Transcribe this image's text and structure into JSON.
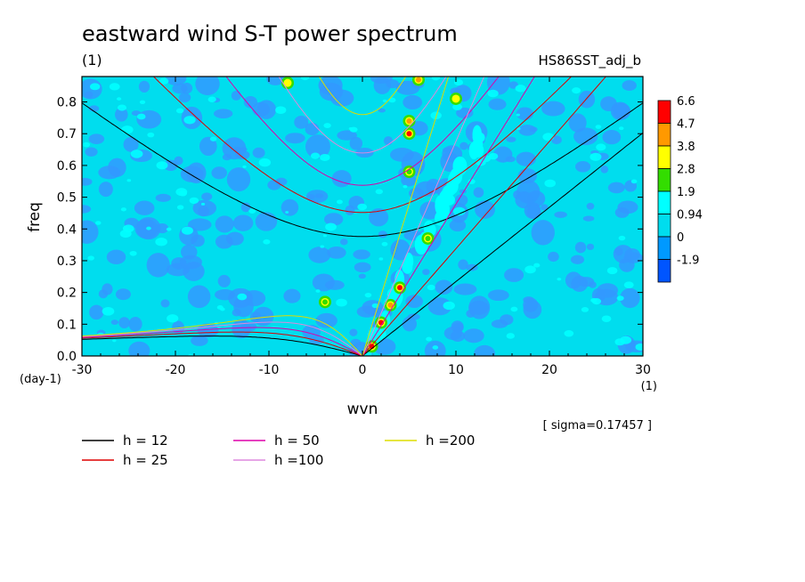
{
  "chart_data": {
    "type": "heatmap",
    "title": "eastward wind S-T power spectrum",
    "subtitle_left": "(1)",
    "subtitle_right": "HS86SST_adj_b",
    "xlabel": "wvn",
    "ylabel": "freq",
    "x_unit": "(1)",
    "y_unit": "(day-1)",
    "xlim": [
      -30,
      30
    ],
    "ylim": [
      0.0,
      0.88
    ],
    "x_ticks": [
      "-30",
      "-20",
      "-10",
      "0",
      "10",
      "20",
      "30"
    ],
    "y_ticks": [
      "0.0",
      "0.1",
      "0.2",
      "0.3",
      "0.4",
      "0.5",
      "0.6",
      "0.7",
      "0.8"
    ],
    "sigma_note": "[ sigma=0.17457 ]",
    "colorbar": {
      "levels": [
        "6.6",
        "4.7",
        "3.8",
        "2.8",
        "1.9",
        "0.94",
        "0",
        "-1.9"
      ],
      "colors": [
        "#ff0000",
        "#ff9900",
        "#ffff00",
        "#33dd00",
        "#00ffff",
        "#00ddee",
        "#0099ff",
        "#0055ff"
      ]
    },
    "dispersion_curves": [
      {
        "name": "h = 12",
        "h": 12,
        "color": "#000000"
      },
      {
        "name": "h = 25",
        "h": 25,
        "color": "#dd0000"
      },
      {
        "name": "h = 50",
        "h": 50,
        "color": "#dd00aa"
      },
      {
        "name": "h =100",
        "h": 100,
        "color": "#dd88dd"
      },
      {
        "name": "h =200",
        "h": 200,
        "color": "#dddd00"
      }
    ],
    "background_color": "#00ddee",
    "hotspots": [
      {
        "x": 1,
        "y": 0.03,
        "level": 6.6
      },
      {
        "x": 2,
        "y": 0.105,
        "level": 6.6
      },
      {
        "x": 3,
        "y": 0.16,
        "level": 4.7
      },
      {
        "x": 4,
        "y": 0.215,
        "level": 6.6
      },
      {
        "x": 5,
        "y": 0.58,
        "level": 2.8
      },
      {
        "x": 5,
        "y": 0.7,
        "level": 6.6
      },
      {
        "x": 5,
        "y": 0.74,
        "level": 4.7
      },
      {
        "x": 6,
        "y": 0.87,
        "level": 4.7
      },
      {
        "x": 7,
        "y": 0.37,
        "level": 2.8
      },
      {
        "x": 10,
        "y": 0.81,
        "level": 3.8
      },
      {
        "x": -8,
        "y": 0.86,
        "level": 3.8
      },
      {
        "x": -4,
        "y": 0.17,
        "level": 2.8
      }
    ]
  }
}
